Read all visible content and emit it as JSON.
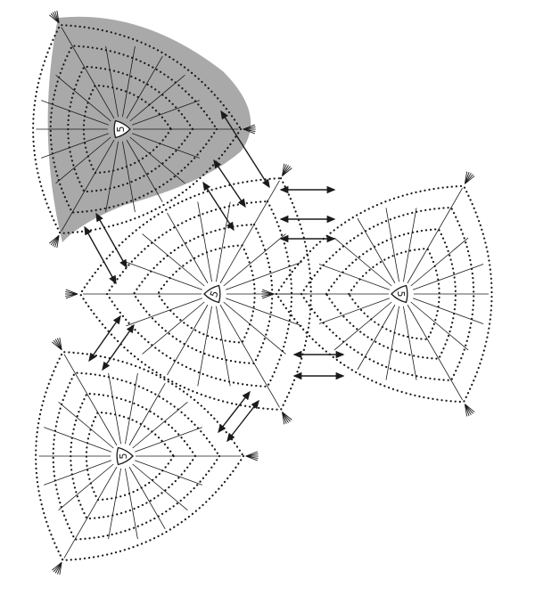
{
  "diagram": {
    "motif_label": "5",
    "motifs": [
      {
        "label": "5",
        "shaded": true
      },
      {
        "label": "5",
        "shaded": false
      },
      {
        "label": "5",
        "shaded": false
      },
      {
        "label": "5",
        "shaded": false
      }
    ],
    "colors": {
      "ink": "#1a1a1a",
      "shade": "#a9a9a9",
      "background": "#ffffff"
    }
  }
}
